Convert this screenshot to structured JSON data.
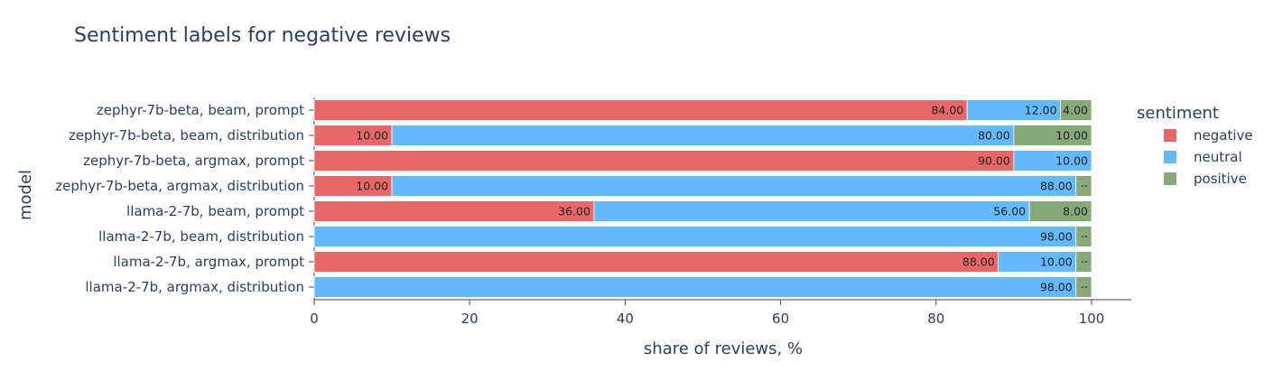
{
  "chart_data": {
    "type": "bar",
    "orientation": "horizontal",
    "barmode": "stack",
    "title": "Sentiment labels for negative reviews",
    "xlabel": "share of reviews, %",
    "ylabel": "model",
    "xlim": [
      0,
      105
    ],
    "xticks": [
      0,
      20,
      40,
      60,
      80,
      100
    ],
    "legend_title": "sentiment",
    "legend_position": "right",
    "categories": [
      "zephyr-7b-beta, beam, prompt",
      "zephyr-7b-beta, beam, distribution",
      "zephyr-7b-beta, argmax, prompt",
      "zephyr-7b-beta, argmax, distribution",
      "llama-2-7b, beam, prompt",
      "llama-2-7b, beam, distribution",
      "llama-2-7b, argmax, prompt",
      "llama-2-7b, argmax, distribution"
    ],
    "series": [
      {
        "name": "negative",
        "color": "#e8686a",
        "values": [
          84,
          10,
          90,
          10,
          36,
          0,
          88,
          0
        ],
        "labels": [
          "84.00",
          "10.00",
          "90.00",
          "10.00",
          "36.00",
          "",
          "88.00",
          ""
        ]
      },
      {
        "name": "neutral",
        "color": "#64b9fb",
        "values": [
          12,
          80,
          10,
          88,
          56,
          98,
          10,
          98
        ],
        "labels": [
          "12.00",
          "80.00",
          "10.00",
          "88.00",
          "56.00",
          "98.00",
          "10.00",
          "98.00"
        ]
      },
      {
        "name": "positive",
        "color": "#87a97a",
        "values": [
          4,
          10,
          0,
          2,
          8,
          2,
          2,
          2
        ],
        "labels": [
          "4.00",
          "10.00",
          "",
          "··",
          "8.00",
          "··",
          "··",
          "··"
        ]
      }
    ]
  }
}
